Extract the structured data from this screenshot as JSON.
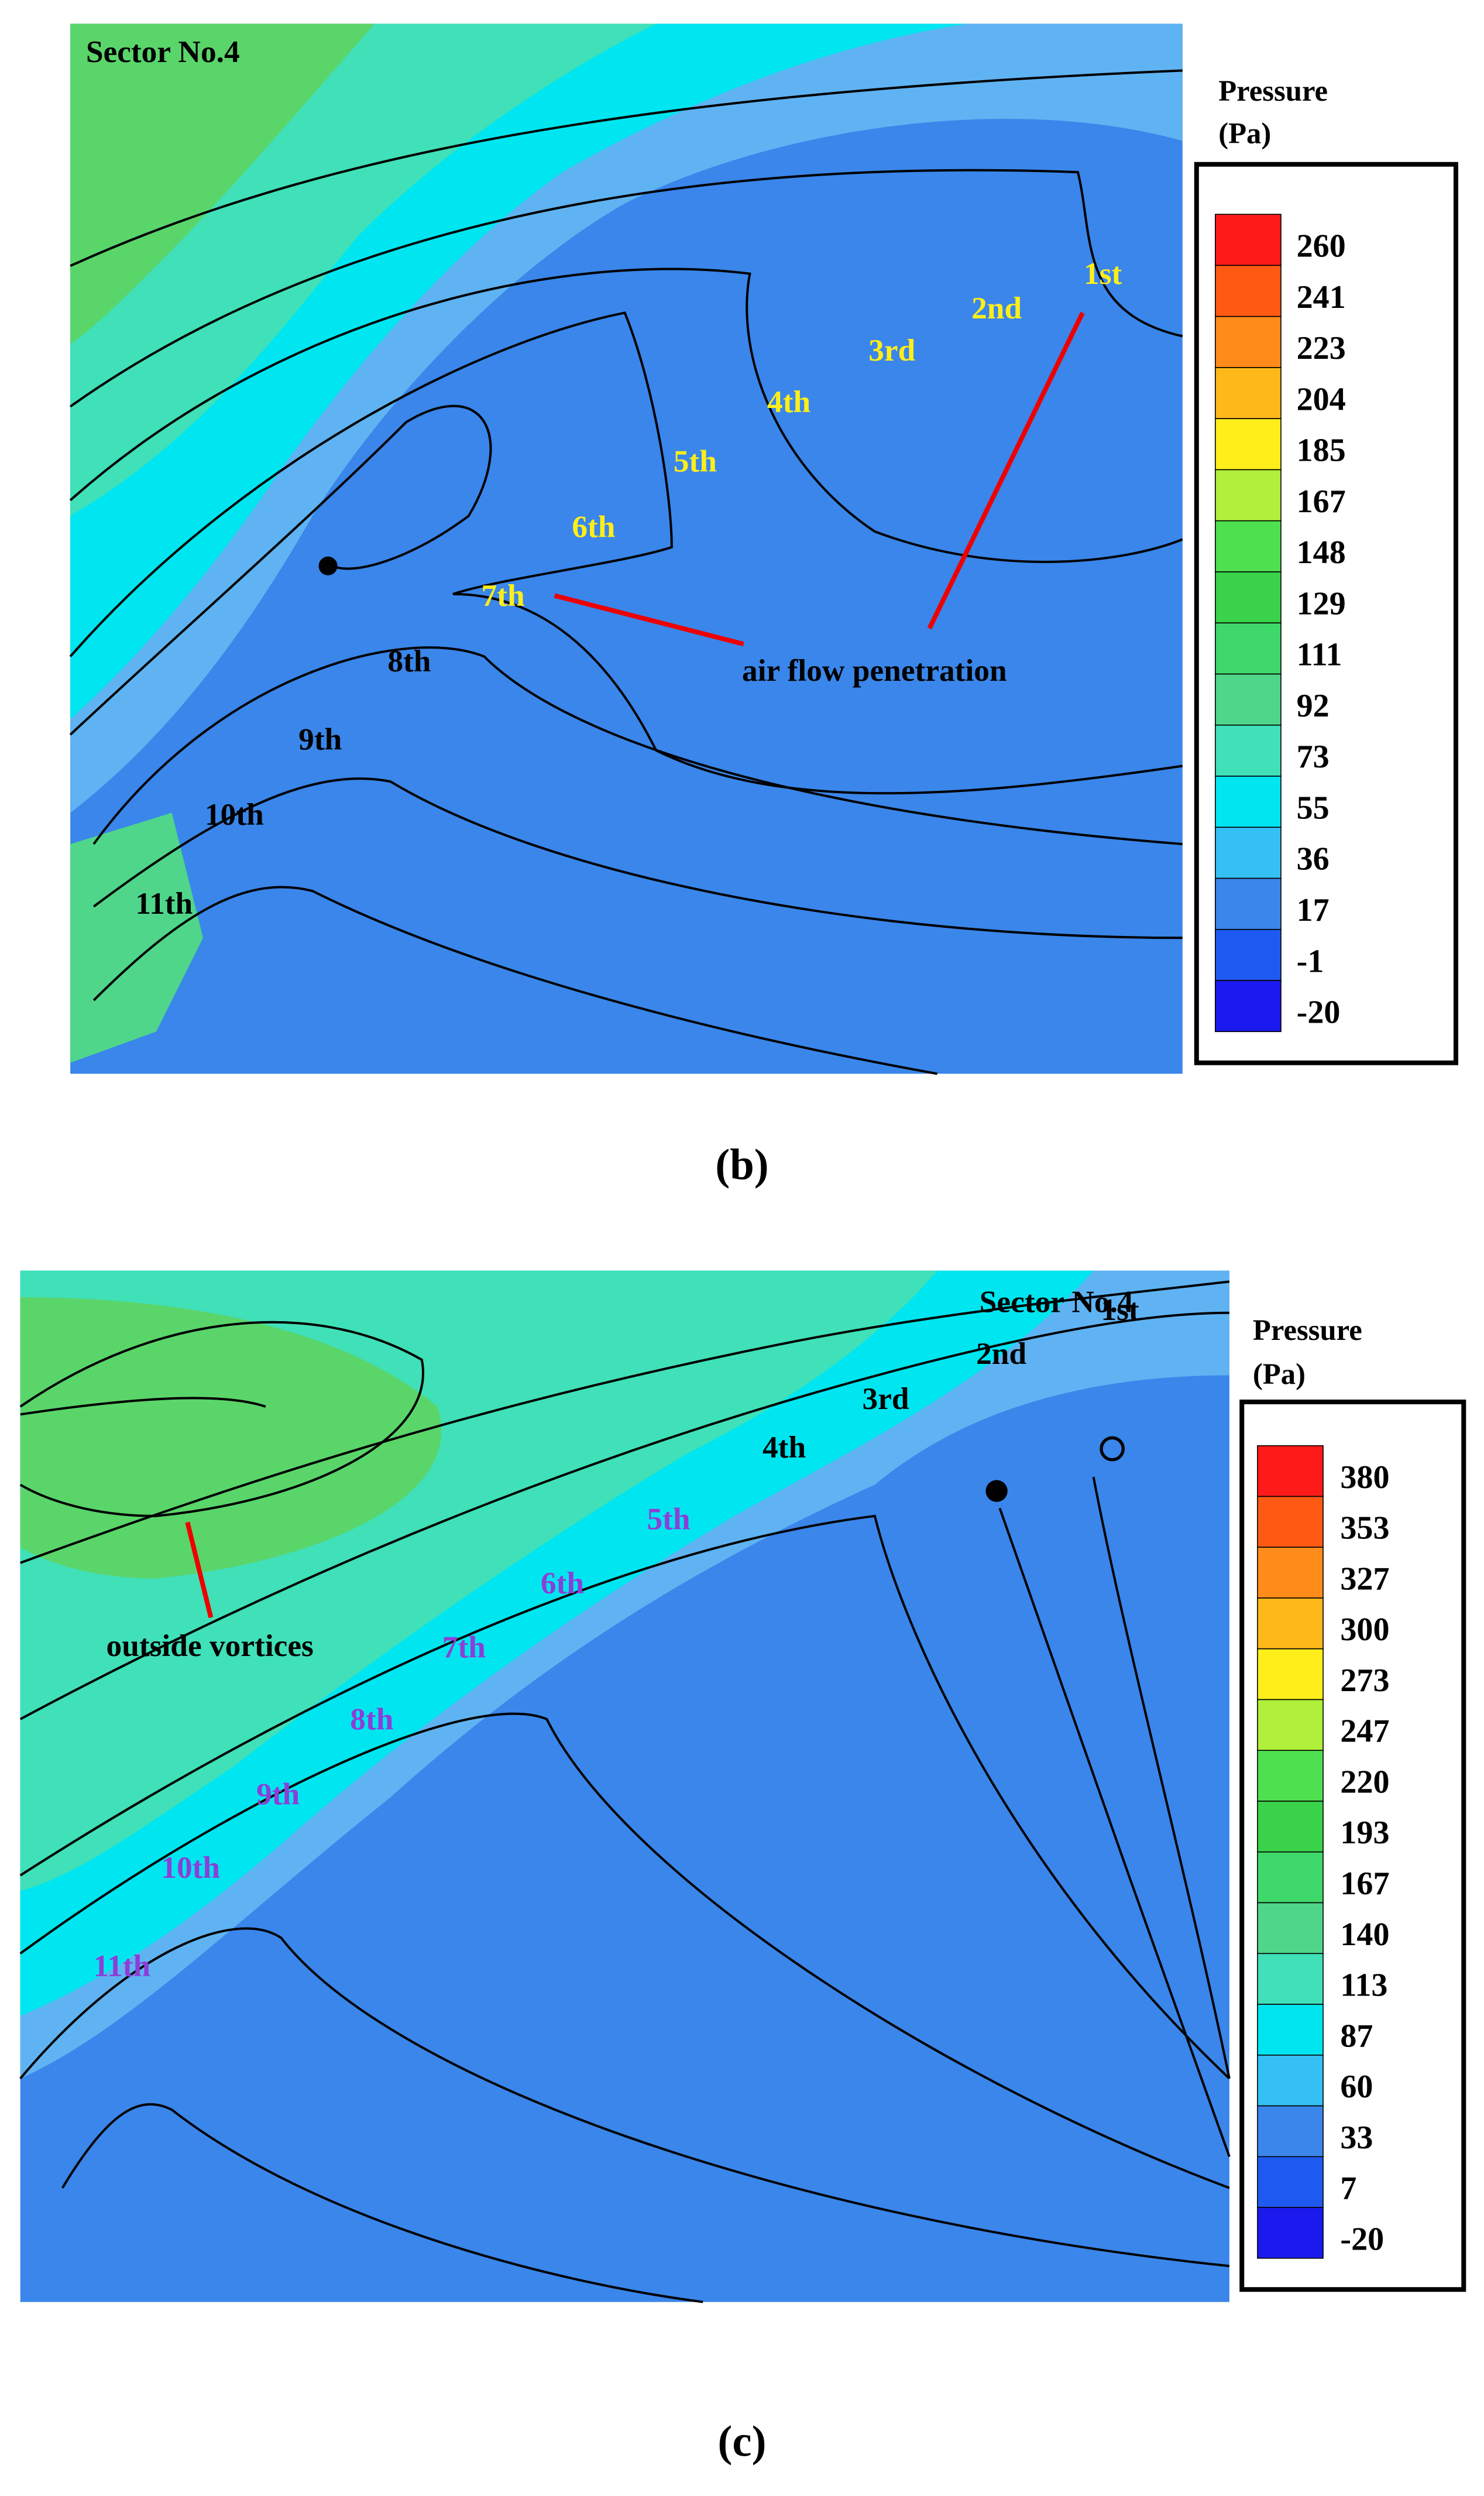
{
  "panels": [
    {
      "sector": "Sector No.4",
      "legend_title": "Pressure",
      "legend_unit": "(Pa)",
      "legend_levels": [
        260,
        241,
        223,
        204,
        185,
        167,
        148,
        129,
        111,
        92,
        73,
        55,
        36,
        17,
        -1,
        -20
      ],
      "blade_labels": [
        "1st",
        "2nd",
        "3rd",
        "4th",
        "5th",
        "6th",
        "7th",
        "8th",
        "9th",
        "10th",
        "11th"
      ],
      "annotation": "air flow penetration",
      "caption": "(b)"
    },
    {
      "sector": "Sector No.4",
      "legend_title": "Pressure",
      "legend_unit": "(Pa)",
      "legend_levels": [
        380,
        353,
        327,
        300,
        273,
        247,
        220,
        193,
        167,
        140,
        113,
        87,
        60,
        33,
        7,
        -20
      ],
      "blade_labels": [
        "1st",
        "2nd",
        "3rd",
        "4th",
        "5th",
        "6th",
        "7th",
        "8th",
        "9th",
        "10th",
        "11th"
      ],
      "annotation": "outside vortices",
      "caption": "(c)"
    }
  ]
}
